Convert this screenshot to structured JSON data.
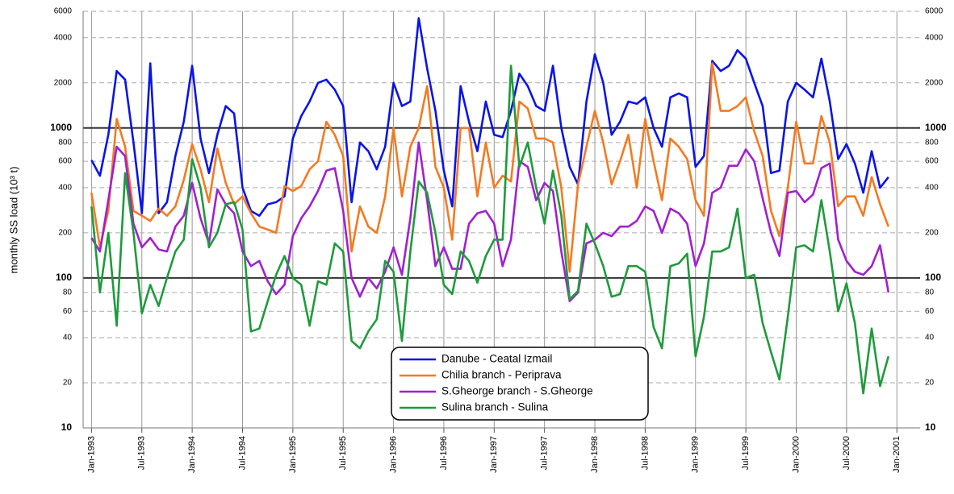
{
  "chart_data": {
    "type": "line",
    "ylabel": "monthly SS load (10³ t)",
    "log_y": true,
    "grid": true,
    "legend": "lower center",
    "x": [
      "1993-01",
      "1993-02",
      "1993-03",
      "1993-04",
      "1993-05",
      "1993-06",
      "1993-07",
      "1993-08",
      "1993-09",
      "1993-10",
      "1993-11",
      "1993-12",
      "1994-01",
      "1994-02",
      "1994-03",
      "1994-04",
      "1994-05",
      "1994-06",
      "1994-07",
      "1994-08",
      "1994-09",
      "1994-10",
      "1994-11",
      "1994-12",
      "1995-01",
      "1995-02",
      "1995-03",
      "1995-04",
      "1995-05",
      "1995-06",
      "1995-07",
      "1995-08",
      "1995-09",
      "1995-10",
      "1995-11",
      "1995-12",
      "1996-01",
      "1996-02",
      "1996-03",
      "1996-04",
      "1996-05",
      "1996-06",
      "1996-07",
      "1996-08",
      "1996-09",
      "1996-10",
      "1996-11",
      "1996-12",
      "1997-01",
      "1997-02",
      "1997-03",
      "1997-04",
      "1997-05",
      "1997-06",
      "1997-07",
      "1997-08",
      "1997-09",
      "1997-10",
      "1997-11",
      "1997-12",
      "1998-01",
      "1998-02",
      "1998-03",
      "1998-04",
      "1998-05",
      "1998-06",
      "1998-07",
      "1998-08",
      "1998-09",
      "1998-10",
      "1998-11",
      "1998-12",
      "1999-01",
      "1999-02",
      "1999-03",
      "1999-04",
      "1999-05",
      "1999-06",
      "1999-07",
      "1999-08",
      "1999-09",
      "1999-10",
      "1999-11",
      "1999-12",
      "2000-01",
      "2000-02",
      "2000-03",
      "2000-04",
      "2000-05",
      "2000-06",
      "2000-07",
      "2000-08",
      "2000-09",
      "2000-10",
      "2000-11",
      "2000-12"
    ],
    "xlim": [
      "1992-12",
      "2001-03"
    ],
    "xticks": [
      {
        "value": "1993-01",
        "label": "Jan-1993"
      },
      {
        "value": "1993-07",
        "label": "Jul-1993"
      },
      {
        "value": "1994-01",
        "label": "Jan-1994"
      },
      {
        "value": "1994-07",
        "label": "Jul-1994"
      },
      {
        "value": "1995-01",
        "label": "Jan-1995"
      },
      {
        "value": "1995-07",
        "label": "Jul-1995"
      },
      {
        "value": "1996-01",
        "label": "Jan-1996"
      },
      {
        "value": "1996-07",
        "label": "Jul-1996"
      },
      {
        "value": "1997-01",
        "label": "Jan-1997"
      },
      {
        "value": "1997-07",
        "label": "Jul-1997"
      },
      {
        "value": "1998-01",
        "label": "Jan-1998"
      },
      {
        "value": "1998-07",
        "label": "Jul-1998"
      },
      {
        "value": "1999-01",
        "label": "Jan-1999"
      },
      {
        "value": "1999-07",
        "label": "Jul-1999"
      },
      {
        "value": "2000-01",
        "label": "Jan-2000"
      },
      {
        "value": "2000-07",
        "label": "Jul-2000"
      },
      {
        "value": "2001-01",
        "label": "Jan-2001"
      }
    ],
    "ylim": [
      10,
      6000
    ],
    "yticks": [
      10,
      20,
      40,
      60,
      80,
      100,
      200,
      400,
      600,
      800,
      1000,
      2000,
      4000,
      6000
    ],
    "series": [
      {
        "name": "Danube - Ceatal Izmail",
        "color": "#0a14e6",
        "values": [
          610,
          480,
          900,
          2400,
          2100,
          800,
          270,
          2700,
          270,
          320,
          650,
          1100,
          2600,
          850,
          500,
          900,
          1400,
          1250,
          400,
          280,
          260,
          310,
          320,
          350,
          850,
          1200,
          1500,
          2000,
          2100,
          1800,
          1400,
          320,
          800,
          700,
          530,
          750,
          2000,
          1400,
          1500,
          5400,
          2500,
          1300,
          520,
          300,
          1900,
          1100,
          700,
          1500,
          900,
          870,
          1300,
          2300,
          1900,
          1400,
          1300,
          2600,
          1000,
          550,
          420,
          1500,
          3100,
          2000,
          900,
          1100,
          1500,
          1450,
          1600,
          1000,
          750,
          1600,
          1700,
          1600,
          550,
          650,
          2800,
          2400,
          2600,
          3300,
          2900,
          2000,
          1400,
          500,
          520,
          1500,
          2000,
          1800,
          1600,
          2900,
          1500,
          620,
          780,
          580,
          370,
          700,
          400,
          470
        ]
      },
      {
        "name": "Chilia branch - Periprava",
        "color": "#f47a20",
        "values": [
          370,
          160,
          280,
          1150,
          750,
          280,
          260,
          240,
          290,
          260,
          300,
          450,
          780,
          530,
          320,
          730,
          430,
          310,
          350,
          270,
          220,
          210,
          200,
          410,
          380,
          410,
          530,
          600,
          1100,
          900,
          650,
          150,
          300,
          220,
          200,
          350,
          1000,
          350,
          750,
          1000,
          1900,
          550,
          400,
          180,
          1000,
          1000,
          350,
          800,
          400,
          480,
          440,
          1500,
          1350,
          850,
          850,
          800,
          400,
          110,
          420,
          750,
          1300,
          800,
          420,
          600,
          900,
          400,
          1150,
          600,
          330,
          850,
          750,
          620,
          330,
          260,
          2700,
          1300,
          1300,
          1400,
          1600,
          950,
          650,
          280,
          190,
          400,
          1100,
          580,
          580,
          1200,
          800,
          300,
          350,
          350,
          260,
          470,
          310,
          220
        ]
      },
      {
        "name": "S.Gheorge branch - S.Gheorge",
        "color": "#a020d0",
        "values": [
          185,
          150,
          330,
          750,
          650,
          230,
          160,
          185,
          155,
          150,
          220,
          260,
          430,
          250,
          170,
          390,
          310,
          270,
          150,
          120,
          130,
          95,
          78,
          90,
          190,
          250,
          300,
          380,
          520,
          540,
          280,
          100,
          75,
          100,
          85,
          110,
          160,
          105,
          250,
          800,
          330,
          120,
          160,
          115,
          115,
          230,
          270,
          280,
          230,
          120,
          180,
          600,
          550,
          330,
          430,
          380,
          150,
          70,
          80,
          170,
          180,
          200,
          190,
          220,
          220,
          240,
          300,
          280,
          200,
          290,
          270,
          230,
          120,
          170,
          370,
          400,
          560,
          560,
          720,
          600,
          340,
          200,
          140,
          370,
          380,
          320,
          360,
          540,
          580,
          180,
          130,
          110,
          105,
          120,
          165,
          80
        ]
      },
      {
        "name": "Sulina branch - Sulina",
        "color": "#1f9a3c",
        "values": [
          300,
          80,
          200,
          48,
          500,
          200,
          58,
          90,
          65,
          100,
          150,
          180,
          620,
          400,
          160,
          200,
          310,
          320,
          210,
          44,
          46,
          70,
          105,
          140,
          100,
          90,
          48,
          95,
          90,
          170,
          150,
          38,
          34,
          44,
          53,
          130,
          110,
          38,
          150,
          440,
          370,
          200,
          90,
          78,
          150,
          130,
          93,
          140,
          180,
          180,
          2600,
          550,
          800,
          400,
          230,
          520,
          260,
          72,
          82,
          230,
          170,
          120,
          75,
          78,
          120,
          120,
          110,
          47,
          34,
          120,
          125,
          145,
          30,
          55,
          150,
          150,
          160,
          290,
          100,
          105,
          50,
          32,
          21,
          55,
          160,
          165,
          150,
          330,
          150,
          60,
          92,
          50,
          17,
          46,
          19,
          30
        ]
      }
    ]
  }
}
